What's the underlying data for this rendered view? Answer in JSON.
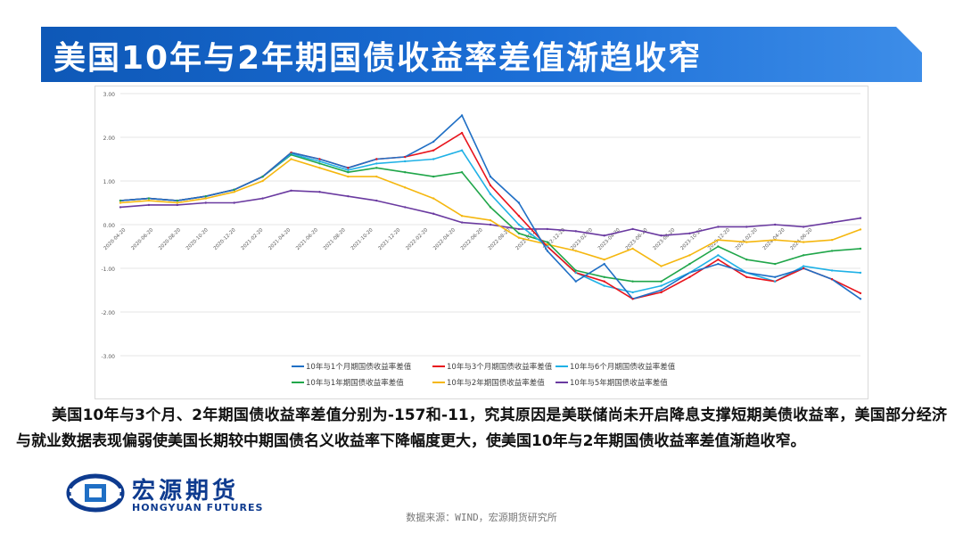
{
  "title": "美国10年与2年期国债收益率差值渐趋收窄",
  "body_text": "美国10年与3个月、2年期国债收益率差值分别为-157和-11，究其原因是美联储尚未开启降息支撑短期美债收益率，美国部分经济与就业数据表现偏弱使美国长期较中期国债名义收益率下降幅度更大，使美国10年与2年期国债收益率差值渐趋收窄。",
  "logo": {
    "cn": "宏源期货",
    "en": "HONGYUAN FUTURES"
  },
  "source": "数据来源：WIND，宏源期货研究所",
  "colors": {
    "title_bar": "#0e58b7",
    "series_1m": "#1f6fc5",
    "series_3m": "#e8141c",
    "series_6m": "#1fb1e6",
    "series_1y": "#20a64a",
    "series_2y": "#f5b70f",
    "series_5y": "#6a3aa0"
  },
  "chart_data": {
    "type": "line",
    "title": "",
    "xlabel": "",
    "ylabel": "",
    "ylim": [
      -3.0,
      3.0
    ],
    "y_ticks": [
      "3.00",
      "2.00",
      "1.00",
      "0.00",
      "-1.00",
      "-2.00",
      "-3.00"
    ],
    "x_ticks": [
      "2020-04-20",
      "2020-06-20",
      "2020-08-20",
      "2020-10-20",
      "2020-12-20",
      "2021-02-20",
      "2021-04-20",
      "2021-06-20",
      "2021-08-20",
      "2021-10-20",
      "2021-12-20",
      "2022-02-20",
      "2022-04-20",
      "2022-06-20",
      "2022-08-20",
      "2022-10-20",
      "2022-12-20",
      "2023-02-20",
      "2023-04-20",
      "2023-06-20",
      "2023-08-20",
      "2023-10-20",
      "2023-12-20",
      "2024-02-20",
      "2024-04-20",
      "2024-06-20"
    ],
    "x": [
      "2020-04-20",
      "2020-06-20",
      "2020-08-20",
      "2020-10-20",
      "2020-12-20",
      "2021-02-20",
      "2021-04-20",
      "2021-06-20",
      "2021-08-20",
      "2021-10-20",
      "2021-12-20",
      "2022-02-20",
      "2022-04-20",
      "2022-06-20",
      "2022-08-20",
      "2022-10-20",
      "2022-12-20",
      "2023-02-20",
      "2023-04-20",
      "2023-06-20",
      "2023-08-20",
      "2023-10-20",
      "2023-12-20",
      "2024-02-20",
      "2024-04-20",
      "2024-06-20",
      "2024-07-20"
    ],
    "grid": true,
    "legend_position": "bottom",
    "series": [
      {
        "name": "10年与1个月期国债收益率差值",
        "color_key": "series_1m",
        "values": [
          0.55,
          0.6,
          0.55,
          0.65,
          0.8,
          1.1,
          1.65,
          1.5,
          1.3,
          1.5,
          1.55,
          1.9,
          2.5,
          1.1,
          0.5,
          -0.6,
          -1.3,
          -0.9,
          -1.7,
          -1.5,
          -1.1,
          -0.9,
          -1.1,
          -1.2,
          -1.0,
          -1.25,
          -1.7
        ]
      },
      {
        "name": "10年与3个月期国债收益率差值",
        "color_key": "series_3m",
        "values": [
          0.55,
          0.6,
          0.55,
          0.65,
          0.8,
          1.1,
          1.65,
          1.5,
          1.3,
          1.5,
          1.55,
          1.7,
          2.1,
          0.9,
          0.2,
          -0.5,
          -1.1,
          -1.3,
          -1.7,
          -1.55,
          -1.2,
          -0.8,
          -1.2,
          -1.3,
          -1.0,
          -1.25,
          -1.57
        ]
      },
      {
        "name": "10年与6个月期国债收益率差值",
        "color_key": "series_6m",
        "values": [
          0.55,
          0.6,
          0.55,
          0.65,
          0.8,
          1.1,
          1.62,
          1.45,
          1.25,
          1.4,
          1.45,
          1.5,
          1.7,
          0.7,
          0.0,
          -0.5,
          -1.1,
          -1.4,
          -1.55,
          -1.4,
          -1.1,
          -0.7,
          -1.1,
          -1.3,
          -0.95,
          -1.05,
          -1.1
        ]
      },
      {
        "name": "10年与1年期国债收益率差值",
        "color_key": "series_1y",
        "values": [
          0.55,
          0.6,
          0.55,
          0.65,
          0.8,
          1.1,
          1.6,
          1.4,
          1.2,
          1.3,
          1.2,
          1.1,
          1.2,
          0.4,
          -0.2,
          -0.4,
          -1.05,
          -1.2,
          -1.3,
          -1.3,
          -0.9,
          -0.5,
          -0.8,
          -0.9,
          -0.7,
          -0.6,
          -0.55
        ]
      },
      {
        "name": "10年与2年期国债收益率差值",
        "color_key": "series_2y",
        "values": [
          0.5,
          0.55,
          0.5,
          0.6,
          0.75,
          1.0,
          1.5,
          1.3,
          1.1,
          1.1,
          0.85,
          0.6,
          0.2,
          0.1,
          -0.3,
          -0.45,
          -0.6,
          -0.8,
          -0.55,
          -0.95,
          -0.7,
          -0.35,
          -0.4,
          -0.35,
          -0.4,
          -0.35,
          -0.11
        ]
      },
      {
        "name": "10年与5年期国债收益率差值",
        "color_key": "series_5y",
        "values": [
          0.4,
          0.45,
          0.45,
          0.5,
          0.5,
          0.6,
          0.78,
          0.75,
          0.65,
          0.55,
          0.4,
          0.25,
          0.05,
          0.0,
          -0.1,
          -0.1,
          -0.15,
          -0.25,
          -0.1,
          -0.25,
          -0.2,
          -0.05,
          -0.05,
          0.0,
          -0.05,
          0.05,
          0.15
        ]
      }
    ]
  }
}
